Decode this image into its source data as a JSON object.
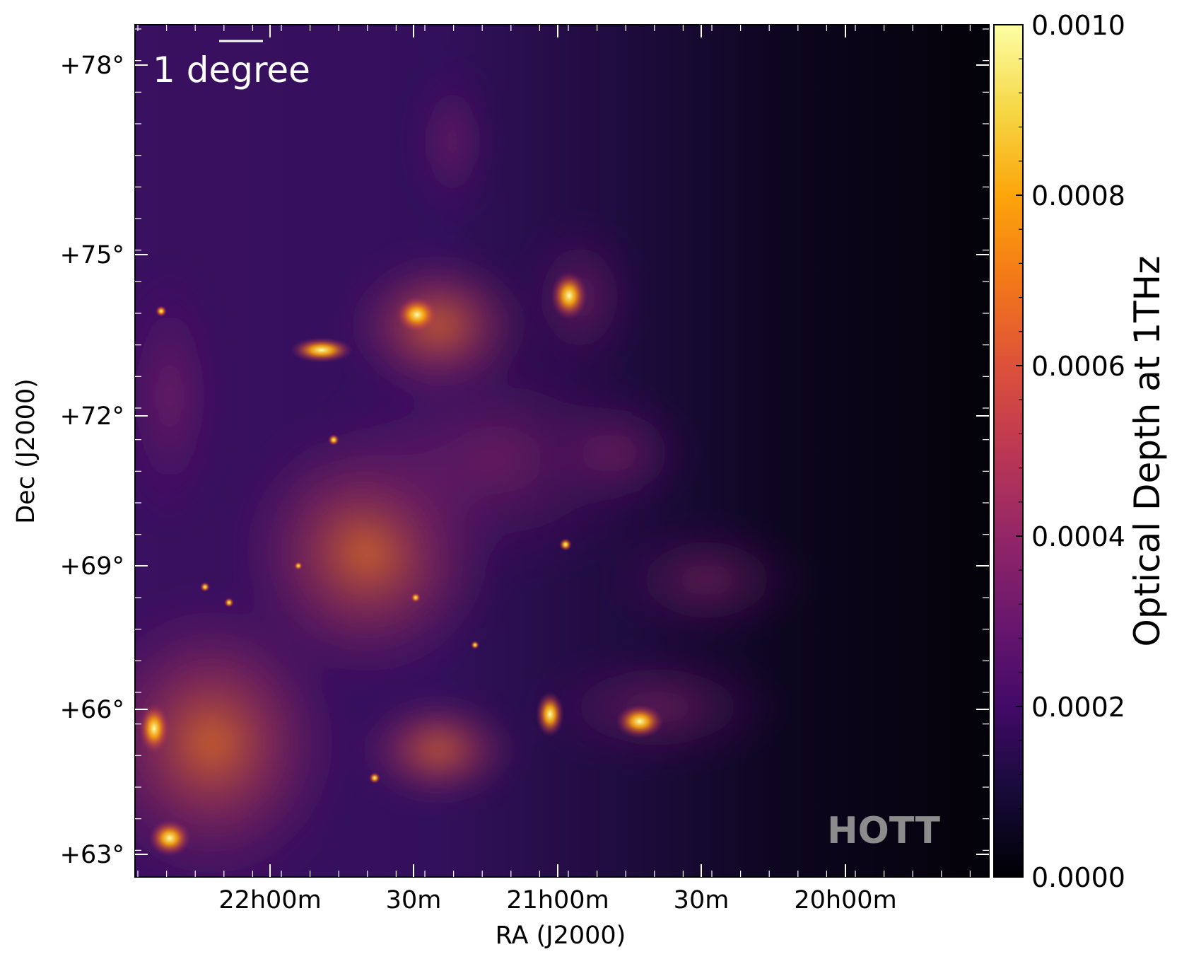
{
  "chart_data": {
    "type": "heatmap",
    "title": "",
    "xlabel": "RA (J2000)",
    "ylabel": "Dec (J2000)",
    "x_ticks": [
      "22h00m",
      "30m",
      "21h00m",
      "30m",
      "20h00m"
    ],
    "y_ticks": [
      "+78°",
      "+75°",
      "+72°",
      "+69°",
      "+66°",
      "+63°"
    ],
    "colorbar": {
      "label": "Optical Depth at 1THz",
      "colormap": "inferno",
      "range": [
        0.0,
        0.001
      ],
      "ticks": [
        "0.0000",
        "0.0002",
        "0.0004",
        "0.0006",
        "0.0008",
        "0.0010"
      ]
    },
    "scalebar_label": "1 degree",
    "watermark": "HOTT",
    "features": {
      "bright_sources_count": 8,
      "diffuse_emission": "bright lower-left, fading to near zero on right"
    }
  }
}
